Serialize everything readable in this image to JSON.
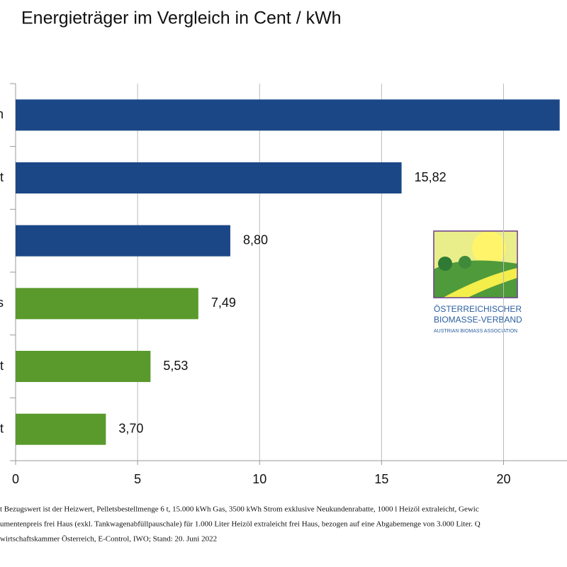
{
  "chart_data": {
    "type": "barh",
    "title": "Energieträger im Vergleich in Cent / kWh",
    "categories": [
      "n",
      "t",
      null,
      "s",
      "t",
      "t"
    ],
    "values": [
      22.3,
      15.82,
      8.8,
      7.49,
      5.53,
      3.7
    ],
    "value_labels": [
      null,
      "15,82",
      "8,80",
      "7,49",
      "5,53",
      "3,70"
    ],
    "colors": [
      "#1b4787",
      "#1b4787",
      "#1b4787",
      "#5a9a2c",
      "#5a9a2c",
      "#5a9a2c"
    ],
    "xlim": [
      0,
      22.6
    ],
    "xticks": [
      0,
      5,
      10,
      15,
      20
    ],
    "grid": true,
    "logo": [
      "Österreichischer",
      "Biomasse-Verband",
      "Austrian Biomass Association"
    ],
    "footnote": [
      "t Bezugswert ist der Heizwert, Pelletsbestellmenge 6 t, 15.000 kWh Gas, 3500 kWh Strom exklusive Neukundenrabatte, 1000 l Heizöl extraleicht, Gewic",
      "umentenpreis frei Haus (exkl. Tankwagenabfüllpauschale) für 1.000 Liter Heizöl extraleicht frei Haus, bezogen auf eine Abgabemenge von 3.000 Liter. Q",
      "wirtschaftskammer Österreich, E-Control, IWO; Stand: 20. Juni 2022"
    ]
  }
}
